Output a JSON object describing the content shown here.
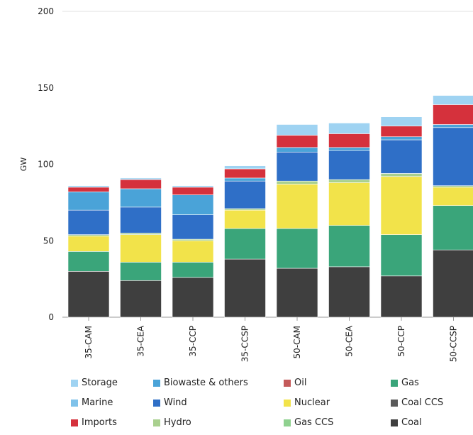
{
  "chart_data": {
    "type": "bar",
    "stacked": true,
    "title": "",
    "xlabel": "",
    "ylabel": "GW",
    "ylim": [
      0,
      200
    ],
    "yticks": [
      0,
      50,
      100,
      150,
      200
    ],
    "grid": false,
    "legend_position": "bottom",
    "categories": [
      "35-CAM",
      "35-CEA",
      "35-CCP",
      "35-CCSP",
      "50-CAM",
      "50-CEA",
      "50-CCP",
      "50-CCSP"
    ],
    "series": [
      {
        "name": "Coal",
        "color": "#3f3f3f",
        "values": [
          30,
          24,
          26,
          38,
          32,
          33,
          27,
          44
        ]
      },
      {
        "name": "Gas",
        "color": "#3aa57a",
        "values": [
          13,
          12,
          10,
          20,
          26,
          27,
          27,
          29
        ]
      },
      {
        "name": "Coal CCS",
        "color": "#5a5a5a",
        "values": [
          0,
          0,
          0,
          0,
          0,
          0,
          0,
          0
        ]
      },
      {
        "name": "Gas CCS",
        "color": "#8fd18f",
        "values": [
          0,
          0,
          0,
          0,
          0,
          0,
          0,
          0
        ]
      },
      {
        "name": "Nuclear",
        "color": "#f2e34a",
        "values": [
          10,
          18,
          14,
          12,
          29,
          28,
          38,
          12
        ]
      },
      {
        "name": "Hydro",
        "color": "#a9d08e",
        "values": [
          1,
          1,
          1,
          1,
          2,
          2,
          2,
          1
        ]
      },
      {
        "name": "Wind",
        "color": "#2f6fc7",
        "values": [
          16,
          17,
          16,
          18,
          19,
          19,
          22,
          38
        ]
      },
      {
        "name": "Marine",
        "color": "#7fc2ea",
        "values": [
          0,
          0,
          0,
          0,
          0,
          0,
          0,
          0
        ]
      },
      {
        "name": "Biowaste & others",
        "color": "#4aa3d8",
        "values": [
          12,
          12,
          13,
          2,
          3,
          2,
          2,
          2
        ]
      },
      {
        "name": "Imports",
        "color": "#d5313c",
        "values": [
          3,
          6,
          5,
          6,
          8,
          9,
          7,
          13
        ]
      },
      {
        "name": "Oil",
        "color": "#c45a5a",
        "values": [
          0,
          0,
          0,
          0,
          0,
          0,
          0,
          0
        ]
      },
      {
        "name": "Storage",
        "color": "#9fd3f2",
        "values": [
          1,
          1,
          1,
          2,
          7,
          7,
          6,
          6
        ]
      }
    ]
  },
  "legend": [
    {
      "label": "Storage",
      "color": "#9fd3f2"
    },
    {
      "label": "Biowaste & others",
      "color": "#4aa3d8"
    },
    {
      "label": "Oil",
      "color": "#c45a5a"
    },
    {
      "label": "Gas",
      "color": "#3aa57a"
    },
    {
      "label": "Marine",
      "color": "#7fc2ea"
    },
    {
      "label": "Wind",
      "color": "#2f6fc7"
    },
    {
      "label": "Nuclear",
      "color": "#f2e34a"
    },
    {
      "label": "Coal CCS",
      "color": "#5a5a5a"
    },
    {
      "label": "Imports",
      "color": "#d5313c"
    },
    {
      "label": "Hydro",
      "color": "#a9d08e"
    },
    {
      "label": "Gas CCS",
      "color": "#8fd18f"
    },
    {
      "label": "Coal",
      "color": "#3f3f3f"
    }
  ]
}
